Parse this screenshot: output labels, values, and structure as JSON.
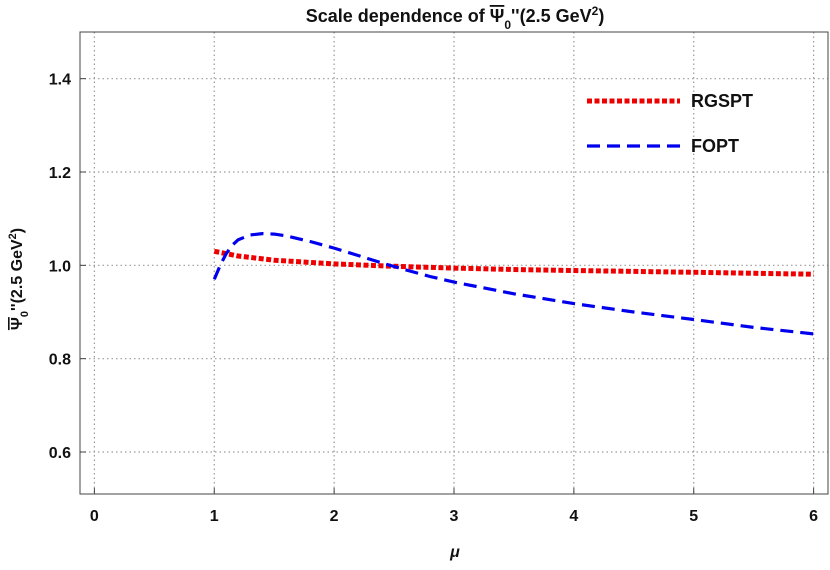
{
  "chart_data": {
    "type": "line",
    "title": "Scale dependence of Ψ̄₀''(2.5 GeV²)",
    "title_parts": {
      "prefix": "Scale dependence of ",
      "symbol": "Ψ",
      "sub": "0",
      "after": "''(2.5 GeV",
      "sup": "2",
      "close": ")"
    },
    "xlabel": "μ",
    "ylabel": "Ψ̄₀''(2.5 GeV²)",
    "ylabel_parts": {
      "symbol": "Ψ",
      "sub": "0",
      "after": "''(2.5 GeV",
      "sup": "2",
      "close": ")"
    },
    "xlim": [
      -0.12,
      6.12
    ],
    "ylim": [
      0.51,
      1.5
    ],
    "xticks": [
      0,
      1,
      2,
      3,
      4,
      5,
      6
    ],
    "xtick_labels": [
      "0",
      "1",
      "2",
      "3",
      "4",
      "5",
      "6"
    ],
    "yticks": [
      0.6,
      0.8,
      1.0,
      1.2,
      1.4
    ],
    "ytick_labels": [
      "0.6",
      "0.8",
      "1.0",
      "1.2",
      "1.4"
    ],
    "grid": true,
    "legend_position": "top-right",
    "series": [
      {
        "name": "RGSPT",
        "color": "#ee0000",
        "style": "dotted",
        "x": [
          1.0,
          1.2,
          1.5,
          2.0,
          2.5,
          3.0,
          3.5,
          4.0,
          4.5,
          5.0,
          5.5,
          6.0
        ],
        "y": [
          1.03,
          1.02,
          1.011,
          1.003,
          0.998,
          0.994,
          0.991,
          0.989,
          0.987,
          0.985,
          0.983,
          0.981
        ]
      },
      {
        "name": "FOPT",
        "color": "#0000ee",
        "style": "dashed",
        "x": [
          1.0,
          1.05,
          1.1,
          1.15,
          1.2,
          1.3,
          1.4,
          1.5,
          1.6,
          1.8,
          2.0,
          2.2,
          2.4,
          2.6,
          2.8,
          3.0,
          3.5,
          4.0,
          4.5,
          5.0,
          5.5,
          6.0
        ],
        "y": [
          0.97,
          1.0,
          1.025,
          1.043,
          1.055,
          1.065,
          1.068,
          1.067,
          1.063,
          1.051,
          1.037,
          1.021,
          1.005,
          0.99,
          0.976,
          0.964,
          0.939,
          0.918,
          0.9,
          0.884,
          0.867,
          0.853
        ]
      }
    ]
  }
}
